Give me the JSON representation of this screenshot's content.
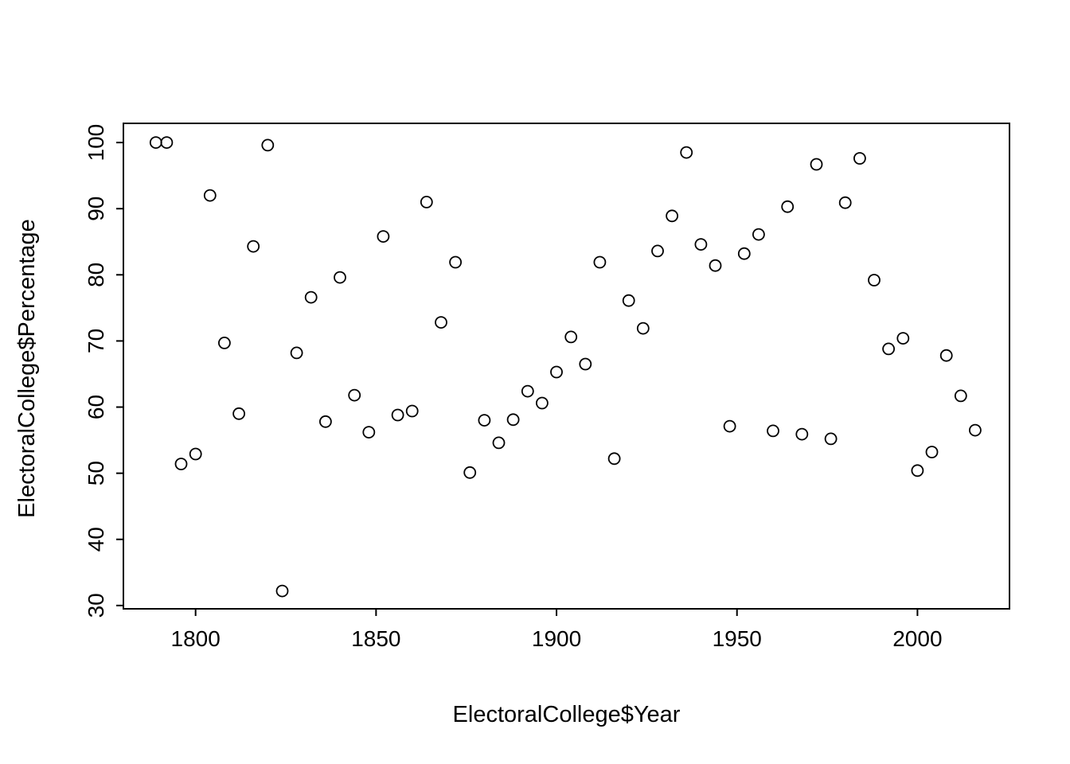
{
  "chart_data": {
    "type": "scatter",
    "title": "",
    "xlabel": "ElectoralCollege$Year",
    "ylabel": "ElectoralCollege$Percentage",
    "xlim": [
      1780,
      2025.5
    ],
    "ylim": [
      29.5,
      102.9
    ],
    "x_ticks": [
      1800,
      1850,
      1900,
      1950,
      2000
    ],
    "y_ticks": [
      30,
      40,
      50,
      60,
      70,
      80,
      90,
      100
    ],
    "grid": false,
    "legend": "none",
    "marker": "open-circle",
    "colors": {
      "stroke": "#000000",
      "background": "#ffffff"
    },
    "points": {
      "x": [
        1789,
        1792,
        1796,
        1800,
        1804,
        1808,
        1812,
        1816,
        1820,
        1824,
        1828,
        1832,
        1836,
        1840,
        1844,
        1848,
        1852,
        1856,
        1860,
        1864,
        1868,
        1872,
        1876,
        1880,
        1884,
        1888,
        1892,
        1896,
        1900,
        1904,
        1908,
        1912,
        1916,
        1920,
        1924,
        1928,
        1932,
        1936,
        1940,
        1944,
        1948,
        1952,
        1956,
        1960,
        1964,
        1968,
        1972,
        1976,
        1980,
        1984,
        1988,
        1992,
        1996,
        2000,
        2004,
        2008,
        2012,
        2016
      ],
      "y": [
        100,
        100,
        51.4,
        52.9,
        92.0,
        69.7,
        59.0,
        84.3,
        99.6,
        32.2,
        68.2,
        76.6,
        57.8,
        79.6,
        61.8,
        56.2,
        85.8,
        58.8,
        59.4,
        91.0,
        72.8,
        81.9,
        50.1,
        58.0,
        54.6,
        58.1,
        62.4,
        60.6,
        65.3,
        70.6,
        66.5,
        81.9,
        52.2,
        76.1,
        71.9,
        83.6,
        88.9,
        98.5,
        84.6,
        81.4,
        57.1,
        83.2,
        86.1,
        56.4,
        90.3,
        55.9,
        96.7,
        55.2,
        90.9,
        97.6,
        79.2,
        68.8,
        70.4,
        50.4,
        53.2,
        67.8,
        61.7,
        56.5
      ]
    }
  }
}
